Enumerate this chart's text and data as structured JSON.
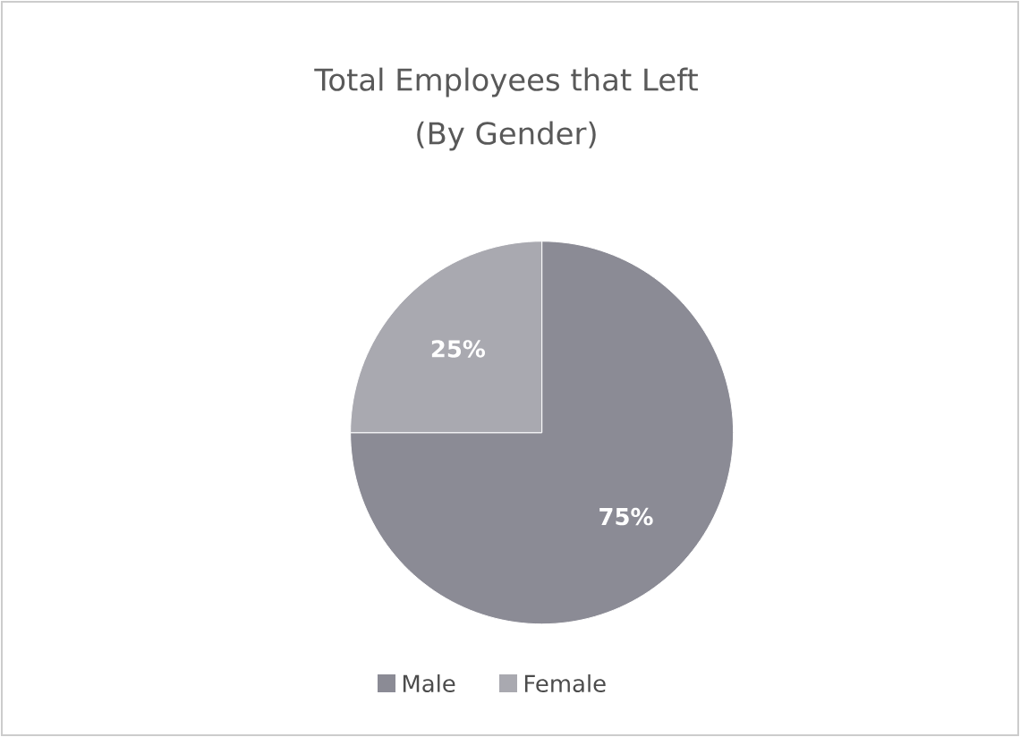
{
  "chart_data": {
    "type": "pie",
    "title": "Total Employees that Left",
    "subtitle": "(By Gender)",
    "categories": [
      "Male",
      "Female"
    ],
    "values": [
      75,
      25
    ],
    "colors": [
      "#8b8b95",
      "#a9a9b0"
    ],
    "value_labels": [
      "75%",
      "25%"
    ],
    "legend": "bottom"
  }
}
